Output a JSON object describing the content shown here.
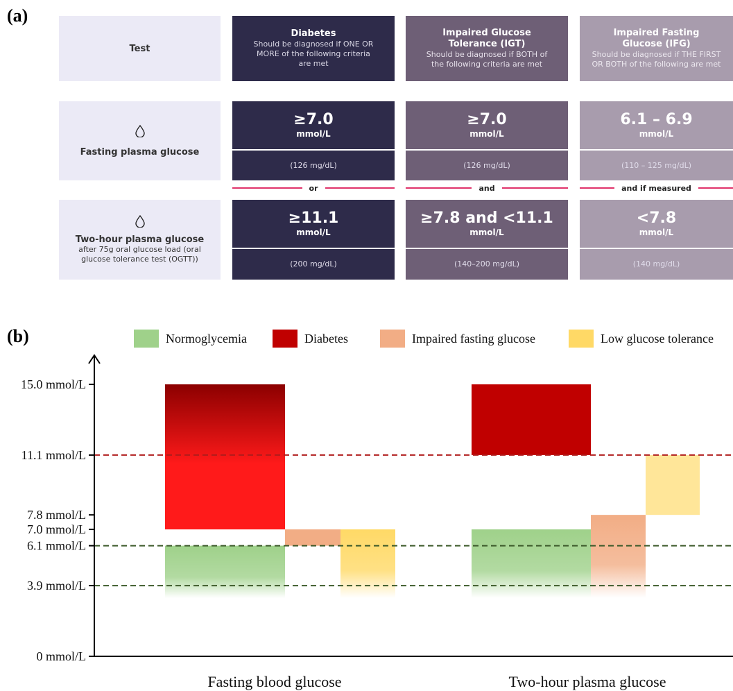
{
  "panel_a": {
    "label": "(a)",
    "test_header": "Test",
    "columns": [
      {
        "title": "Diabetes",
        "subtitle": "Should be diagnosed if ONE OR\nMORE of the following criteria\nare met",
        "color": "#2e2b4a",
        "sub_color": "#d8d6e4"
      },
      {
        "title": "Impaired Glucose\nTolerance (IGT)",
        "subtitle": "Should be diagnosed if BOTH of\nthe following criteria are met",
        "color": "#6e5f76",
        "sub_color": "#e6e0ea"
      },
      {
        "title": "Impaired Fasting\nGlucose (IFG)",
        "subtitle": "Should be diagnosed if THE FIRST\nOR BOTH of the following are met",
        "color": "#a89cad",
        "sub_color": "#ece8ef"
      }
    ],
    "rows": [
      {
        "name": "Fasting plasma glucose",
        "icon": "drop-icon",
        "detail": "",
        "values": [
          {
            "main": "≥7.0",
            "unit": "mmol/L",
            "mg": "(126 mg/dL)"
          },
          {
            "main": "≥7.0",
            "unit": "mmol/L",
            "mg": "(126 mg/dL)"
          },
          {
            "main": "6.1 – 6.9",
            "unit": "mmol/L",
            "mg": "(110 – 125 mg/dL)"
          }
        ]
      },
      {
        "name": "Two-hour plasma glucose",
        "icon": "drop-icon",
        "detail": "after 75g oral glucose load (oral glucose tolerance test (OGTT))",
        "values": [
          {
            "main": "≥11.1",
            "unit": "mmol/L",
            "mg": "(200 mg/dL)"
          },
          {
            "main": "≥7.8 and <11.1",
            "unit": "mmol/L",
            "mg": "(140–200 mg/dL)"
          },
          {
            "main": "<7.8",
            "unit": "mmol/L",
            "mg": "(140 mg/dL)"
          }
        ]
      }
    ],
    "connectors": [
      "or",
      "and",
      "and if measured"
    ],
    "colors": {
      "test_bg": "#ebeaf6",
      "connector_line": "#e0336a"
    }
  },
  "panel_b": {
    "label": "(b)"
  },
  "chart_data": {
    "type": "bar",
    "title": "",
    "categories": [
      "Fasting blood glucose",
      "Two-hour plasma glucose"
    ],
    "y_unit": "mmol/L",
    "ylim": [
      0,
      15.0
    ],
    "y_ticks": [
      {
        "value": 0,
        "label": "0 mmol/L"
      },
      {
        "value": 3.9,
        "label": "3.9 mmol/L"
      },
      {
        "value": 6.1,
        "label": "6.1 mmol/L"
      },
      {
        "value": 7.0,
        "label": "7.0 mmol/L"
      },
      {
        "value": 7.8,
        "label": "7.8 mmol/L"
      },
      {
        "value": 11.1,
        "label": "11.1 mmol/L"
      },
      {
        "value": 15.0,
        "label": "15.0 mmol/L"
      }
    ],
    "reference_lines": [
      {
        "value": 11.1,
        "color": "#b01c1c"
      },
      {
        "value": 6.1,
        "color": "#3c5a2a"
      },
      {
        "value": 3.9,
        "color": "#3c5a2a"
      }
    ],
    "legend": [
      {
        "name": "Normoglycemia",
        "color": "#9fd18a"
      },
      {
        "name": "Diabetes",
        "color": "#c00000"
      },
      {
        "name": "Impaired fasting glucose",
        "color": "#f2ad85"
      },
      {
        "name": "Low glucose tolerance",
        "color": "#ffd966"
      }
    ],
    "legend_position": "top",
    "grid": false,
    "series": [
      {
        "name": "Normoglycemia",
        "category": "Fasting blood glucose",
        "low": 3.9,
        "high": 6.1,
        "color": "#9fd18a"
      },
      {
        "name": "Diabetes",
        "category": "Fasting blood glucose",
        "low": 7.0,
        "high": 15.0,
        "color": "#ff1a1a"
      },
      {
        "name": "Impaired fasting glucose",
        "category": "Fasting blood glucose",
        "low": 6.1,
        "high": 7.0,
        "color": "#f2ad85"
      },
      {
        "name": "Low glucose tolerance",
        "category": "Fasting blood glucose",
        "low": 3.9,
        "high": 7.0,
        "color": "#ffd966"
      },
      {
        "name": "Normoglycemia",
        "category": "Two-hour plasma glucose",
        "low": 3.9,
        "high": 7.0,
        "color": "#9fd18a"
      },
      {
        "name": "Diabetes",
        "category": "Two-hour plasma glucose",
        "low": 11.1,
        "high": 15.0,
        "color": "#c00000"
      },
      {
        "name": "Impaired fasting glucose",
        "category": "Two-hour plasma glucose",
        "low": 3.9,
        "high": 7.8,
        "color": "#f2ad85"
      },
      {
        "name": "Low glucose tolerance",
        "category": "Two-hour plasma glucose",
        "low": 7.8,
        "high": 11.1,
        "color": "#ffe699"
      }
    ]
  }
}
